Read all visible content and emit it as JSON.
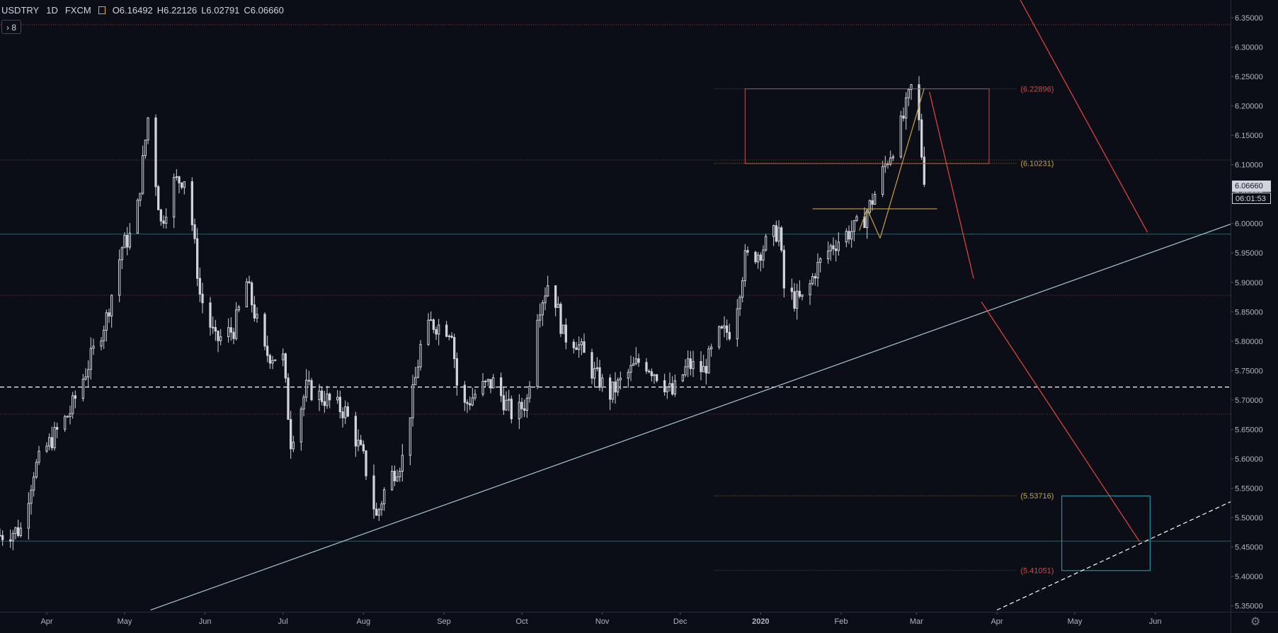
{
  "header": {
    "symbol": "USDTRY",
    "interval": "1D",
    "exchange": "FXCM",
    "ohlc": {
      "open": "O6.16492",
      "high": "H6.22126",
      "low": "L6.02791",
      "close": "C6.06660"
    },
    "indicator_count": "8",
    "flag_color": "#f7a600"
  },
  "price_tags": {
    "last_price": "6.06660",
    "countdown": "06:01:53"
  },
  "colors": {
    "background": "#0c0e17",
    "candle": "#d1d4dc",
    "grid_line": "#2a2e39",
    "trendline": "#a9c9d6",
    "projection": "#e8473b",
    "fib_orange": "#c8a03c",
    "box_red": "#c94b46",
    "box_teal": "#2aa5b8"
  },
  "chart_data": {
    "type": "candlestick",
    "title": "USDTRY · 1D · FXCM",
    "xlabel": "",
    "ylabel": "",
    "x_range": [
      "2019-03-14",
      "2020-06-30"
    ],
    "ylim": [
      5.34,
      6.38
    ],
    "y_ticks": [
      "6.35000",
      "6.30000",
      "6.25000",
      "6.20000",
      "6.15000",
      "6.10000",
      "6.05000",
      "6.00000",
      "5.95000",
      "5.90000",
      "5.85000",
      "5.80000",
      "5.75000",
      "5.70000",
      "5.65000",
      "5.60000",
      "5.55000",
      "5.50000",
      "5.45000",
      "5.40000",
      "5.35000"
    ],
    "x_ticks": [
      {
        "date": "2019-04-01",
        "label": "Apr"
      },
      {
        "date": "2019-05-01",
        "label": "May"
      },
      {
        "date": "2019-06-01",
        "label": "Jun"
      },
      {
        "date": "2019-07-01",
        "label": "Jul"
      },
      {
        "date": "2019-08-01",
        "label": "Aug"
      },
      {
        "date": "2019-09-01",
        "label": "Sep"
      },
      {
        "date": "2019-10-01",
        "label": "Oct"
      },
      {
        "date": "2019-11-01",
        "label": "Nov"
      },
      {
        "date": "2019-12-01",
        "label": "Dec"
      },
      {
        "date": "2020-01-01",
        "label": "2020"
      },
      {
        "date": "2020-02-01",
        "label": "Feb"
      },
      {
        "date": "2020-03-01",
        "label": "Mar"
      },
      {
        "date": "2020-04-01",
        "label": "Apr"
      },
      {
        "date": "2020-05-01",
        "label": "May"
      },
      {
        "date": "2020-06-01",
        "label": "Jun"
      }
    ],
    "price_path": [
      [
        "2019-03-14",
        5.47
      ],
      [
        "2019-03-22",
        5.48
      ],
      [
        "2019-03-27",
        5.58
      ],
      [
        "2019-04-01",
        5.62
      ],
      [
        "2019-04-10",
        5.68
      ],
      [
        "2019-04-17",
        5.76
      ],
      [
        "2019-04-24",
        5.84
      ],
      [
        "2019-04-30",
        5.96
      ],
      [
        "2019-05-05",
        5.99
      ],
      [
        "2019-05-10",
        6.18
      ],
      [
        "2019-05-15",
        6.0
      ],
      [
        "2019-05-20",
        6.07
      ],
      [
        "2019-05-25",
        6.08
      ],
      [
        "2019-05-30",
        5.88
      ],
      [
        "2019-06-05",
        5.8
      ],
      [
        "2019-06-12",
        5.82
      ],
      [
        "2019-06-17",
        5.9
      ],
      [
        "2019-06-24",
        5.78
      ],
      [
        "2019-07-01",
        5.77
      ],
      [
        "2019-07-04",
        5.63
      ],
      [
        "2019-07-10",
        5.72
      ],
      [
        "2019-07-18",
        5.7
      ],
      [
        "2019-07-25",
        5.68
      ],
      [
        "2019-08-01",
        5.6
      ],
      [
        "2019-08-06",
        5.5
      ],
      [
        "2019-08-10",
        5.56
      ],
      [
        "2019-08-16",
        5.6
      ],
      [
        "2019-08-23",
        5.79
      ],
      [
        "2019-08-27",
        5.83
      ],
      [
        "2019-09-04",
        5.82
      ],
      [
        "2019-09-07",
        5.68
      ],
      [
        "2019-09-15",
        5.72
      ],
      [
        "2019-09-20",
        5.73
      ],
      [
        "2019-09-28",
        5.67
      ],
      [
        "2019-10-03",
        5.7
      ],
      [
        "2019-10-07",
        5.85
      ],
      [
        "2019-10-12",
        5.91
      ],
      [
        "2019-10-17",
        5.81
      ],
      [
        "2019-10-22",
        5.8
      ],
      [
        "2019-10-28",
        5.75
      ],
      [
        "2019-11-04",
        5.71
      ],
      [
        "2019-11-10",
        5.74
      ],
      [
        "2019-11-16",
        5.77
      ],
      [
        "2019-11-23",
        5.74
      ],
      [
        "2019-11-28",
        5.71
      ],
      [
        "2019-12-04",
        5.76
      ],
      [
        "2019-12-10",
        5.75
      ],
      [
        "2019-12-16",
        5.81
      ],
      [
        "2019-12-21",
        5.82
      ],
      [
        "2019-12-26",
        5.94
      ],
      [
        "2019-12-31",
        5.95
      ],
      [
        "2020-01-04",
        5.97
      ],
      [
        "2020-01-08",
        5.99
      ],
      [
        "2020-01-10",
        5.89
      ],
      [
        "2020-01-14",
        5.87
      ],
      [
        "2020-01-18",
        5.87
      ],
      [
        "2020-01-22",
        5.92
      ],
      [
        "2020-01-28",
        5.96
      ],
      [
        "2020-02-02",
        5.98
      ],
      [
        "2020-02-06",
        5.99
      ],
      [
        "2020-02-10",
        6.01
      ],
      [
        "2020-02-14",
        6.05
      ],
      [
        "2020-02-18",
        6.1
      ],
      [
        "2020-02-22",
        6.14
      ],
      [
        "2020-02-25",
        6.18
      ],
      [
        "2020-02-28",
        6.23
      ],
      [
        "2020-03-02",
        6.17
      ],
      [
        "2020-03-04",
        6.0665
      ]
    ],
    "horizontal_levels": [
      {
        "price": 6.338,
        "style": "dotted",
        "color": "#a33c3c"
      },
      {
        "price": 6.108,
        "style": "dotted",
        "color": "#6a4a3a"
      },
      {
        "price": 5.982,
        "style": "solid",
        "color": "#2f5f66"
      },
      {
        "price": 5.878,
        "style": "dotted",
        "color": "#6a3a3a"
      },
      {
        "price": 5.722,
        "style": "dashed",
        "color": "#ffffff"
      },
      {
        "price": 5.676,
        "style": "dotted",
        "color": "#6a3a3a"
      },
      {
        "price": 5.46,
        "style": "solid",
        "color": "#2f5f66"
      }
    ],
    "fib_levels": [
      {
        "price": 6.22896,
        "label": "(6.22896)",
        "color": "#c94b46"
      },
      {
        "price": 6.10231,
        "label": "(6.10231)",
        "color": "#c8a03c"
      },
      {
        "price": 5.53716,
        "label": "(5.53716)",
        "color": "#c8a03c"
      },
      {
        "price": 5.41051,
        "label": "(5.41051)",
        "color": "#c94b46"
      }
    ],
    "trendlines": [
      {
        "from": [
          "2019-05-11",
          5.343
        ],
        "to": [
          "2020-06-30",
          5.999
        ],
        "style": "solid",
        "color": "#a9c9d6"
      },
      {
        "from": [
          "2020-04-01",
          5.343
        ],
        "to": [
          "2020-06-30",
          5.527
        ],
        "style": "dashed",
        "color": "#ffffff"
      },
      {
        "from": [
          "2020-04-10",
          6.38
        ],
        "to": [
          "2020-05-29",
          5.985
        ],
        "style": "solid",
        "color": "#e8473b"
      },
      {
        "from": [
          "2020-03-06",
          6.224
        ],
        "to": [
          "2020-03-23",
          5.907
        ],
        "style": "solid",
        "color": "#e8473b"
      },
      {
        "from": [
          "2020-03-26",
          5.867
        ],
        "to": [
          "2020-05-26",
          5.459
        ],
        "style": "solid",
        "color": "#e8473b"
      },
      {
        "from": [
          "2020-01-21",
          6.025
        ],
        "to": [
          "2020-03-09",
          6.025
        ],
        "style": "solid",
        "color": "#c8a03c"
      },
      {
        "from": [
          "2020-02-08",
          5.988
        ],
        "to": [
          "2020-02-11",
          6.025
        ],
        "style": "solid",
        "color": "#c8a03c"
      },
      {
        "from": [
          "2020-02-11",
          6.025
        ],
        "to": [
          "2020-02-16",
          5.975
        ],
        "style": "solid",
        "color": "#c8a03c"
      },
      {
        "from": [
          "2020-02-16",
          5.975
        ],
        "to": [
          "2020-03-04",
          6.23
        ],
        "style": "solid",
        "color": "#c8a03c"
      }
    ],
    "rectangles": [
      {
        "from": [
          "2019-12-26",
          6.229
        ],
        "to": [
          "2020-03-29",
          6.102
        ],
        "color": "#c94b46"
      },
      {
        "from": [
          "2020-04-26",
          5.537
        ],
        "to": [
          "2020-05-30",
          5.41
        ],
        "color": "#2aa5b8"
      }
    ],
    "grid": false,
    "legend": "none"
  }
}
